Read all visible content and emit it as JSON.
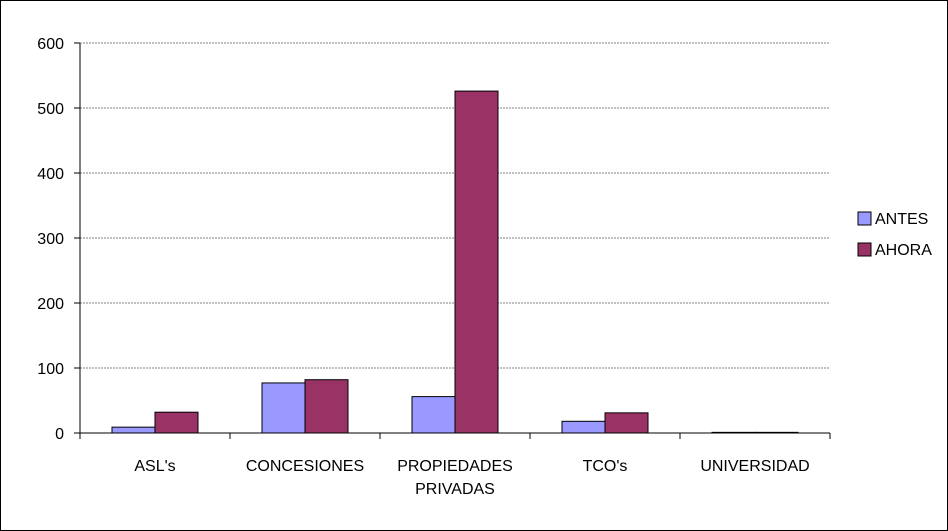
{
  "chart_data": {
    "type": "bar",
    "categories": [
      "ASL's",
      "CONCESIONES",
      "PROPIEDADES PRIVADAS",
      "TCO's",
      "UNIVERSIDAD"
    ],
    "category_lines": [
      [
        "ASL's"
      ],
      [
        "CONCESIONES"
      ],
      [
        "PROPIEDADES",
        "PRIVADAS"
      ],
      [
        "TCO's"
      ],
      [
        "UNIVERSIDAD"
      ]
    ],
    "series": [
      {
        "name": "ANTES",
        "color": "#9999FF",
        "values": [
          9,
          77,
          56,
          18,
          1
        ]
      },
      {
        "name": "AHORA",
        "color": "#993366",
        "values": [
          32,
          82,
          526,
          31,
          1
        ]
      }
    ],
    "title": "",
    "xlabel": "",
    "ylabel": "",
    "ylim": [
      0,
      600
    ],
    "yticks": [
      0,
      100,
      200,
      300,
      400,
      500,
      600
    ],
    "grid": true,
    "legend_position": "right"
  }
}
